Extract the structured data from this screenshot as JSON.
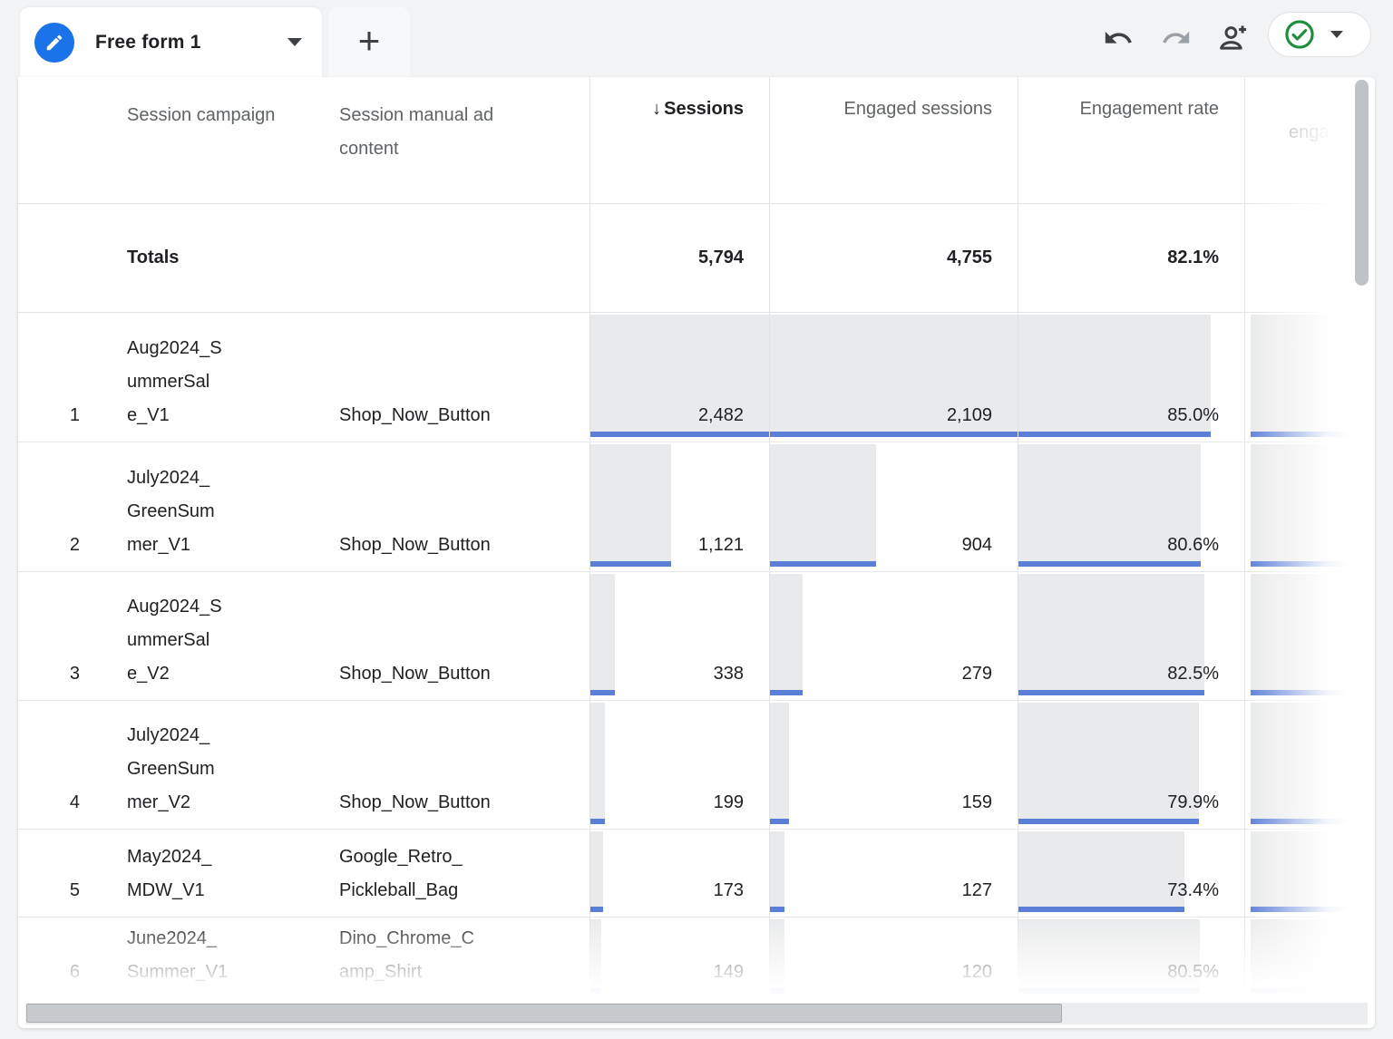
{
  "tabs": {
    "active_label": "Free form 1",
    "active_icon": "pencil-icon",
    "dropdown_icon": "caret-down-icon",
    "add_label": "+"
  },
  "toolbar": {
    "icons": [
      "undo",
      "redo",
      "person-add",
      "check-circle",
      "dropdown-caret"
    ]
  },
  "table": {
    "columns": [
      "Session campaign",
      "Session manual ad content",
      "Sessions",
      "Engaged sessions",
      "Engagement rate"
    ],
    "sort_icon": "↓",
    "sorted_column": "Sessions",
    "partial_column_label": "enga",
    "totals": {
      "label": "Totals",
      "sessions": "5,794",
      "engaged": "4,755",
      "rate": "82.1%"
    },
    "max": {
      "sessions": 2482,
      "engaged": 2109
    },
    "rows": [
      {
        "num": "1",
        "campaign": "Aug2024_S\nummerSal\ne_V1",
        "ad_content": "Shop_Now_Button",
        "sessions": "2,482",
        "engaged": "2,109",
        "rate": "85.0%",
        "sessions_val": 2482,
        "engaged_val": 2109,
        "rate_val": 85.0
      },
      {
        "num": "2",
        "campaign": "July2024_\nGreenSum\nmer_V1",
        "ad_content": "Shop_Now_Button",
        "sessions": "1,121",
        "engaged": "904",
        "rate": "80.6%",
        "sessions_val": 1121,
        "engaged_val": 904,
        "rate_val": 80.6
      },
      {
        "num": "3",
        "campaign": "Aug2024_S\nummerSal\ne_V2",
        "ad_content": "Shop_Now_Button",
        "sessions": "338",
        "engaged": "279",
        "rate": "82.5%",
        "sessions_val": 338,
        "engaged_val": 279,
        "rate_val": 82.5
      },
      {
        "num": "4",
        "campaign": "July2024_\nGreenSum\nmer_V2",
        "ad_content": "Shop_Now_Button",
        "sessions": "199",
        "engaged": "159",
        "rate": "79.9%",
        "sessions_val": 199,
        "engaged_val": 159,
        "rate_val": 79.9
      },
      {
        "num": "5",
        "campaign": "May2024_\nMDW_V1",
        "ad_content": "Google_Retro_\nPickleball_Bag",
        "sessions": "173",
        "engaged": "127",
        "rate": "73.4%",
        "sessions_val": 173,
        "engaged_val": 127,
        "rate_val": 73.4
      },
      {
        "num": "6",
        "campaign": "June2024_\nSummer_V1",
        "ad_content": "Dino_Chrome_C\namp_Shirt",
        "sessions": "149",
        "engaged": "120",
        "rate": "80.5%",
        "sessions_val": 149,
        "engaged_val": 120,
        "rate_val": 80.5
      }
    ]
  }
}
